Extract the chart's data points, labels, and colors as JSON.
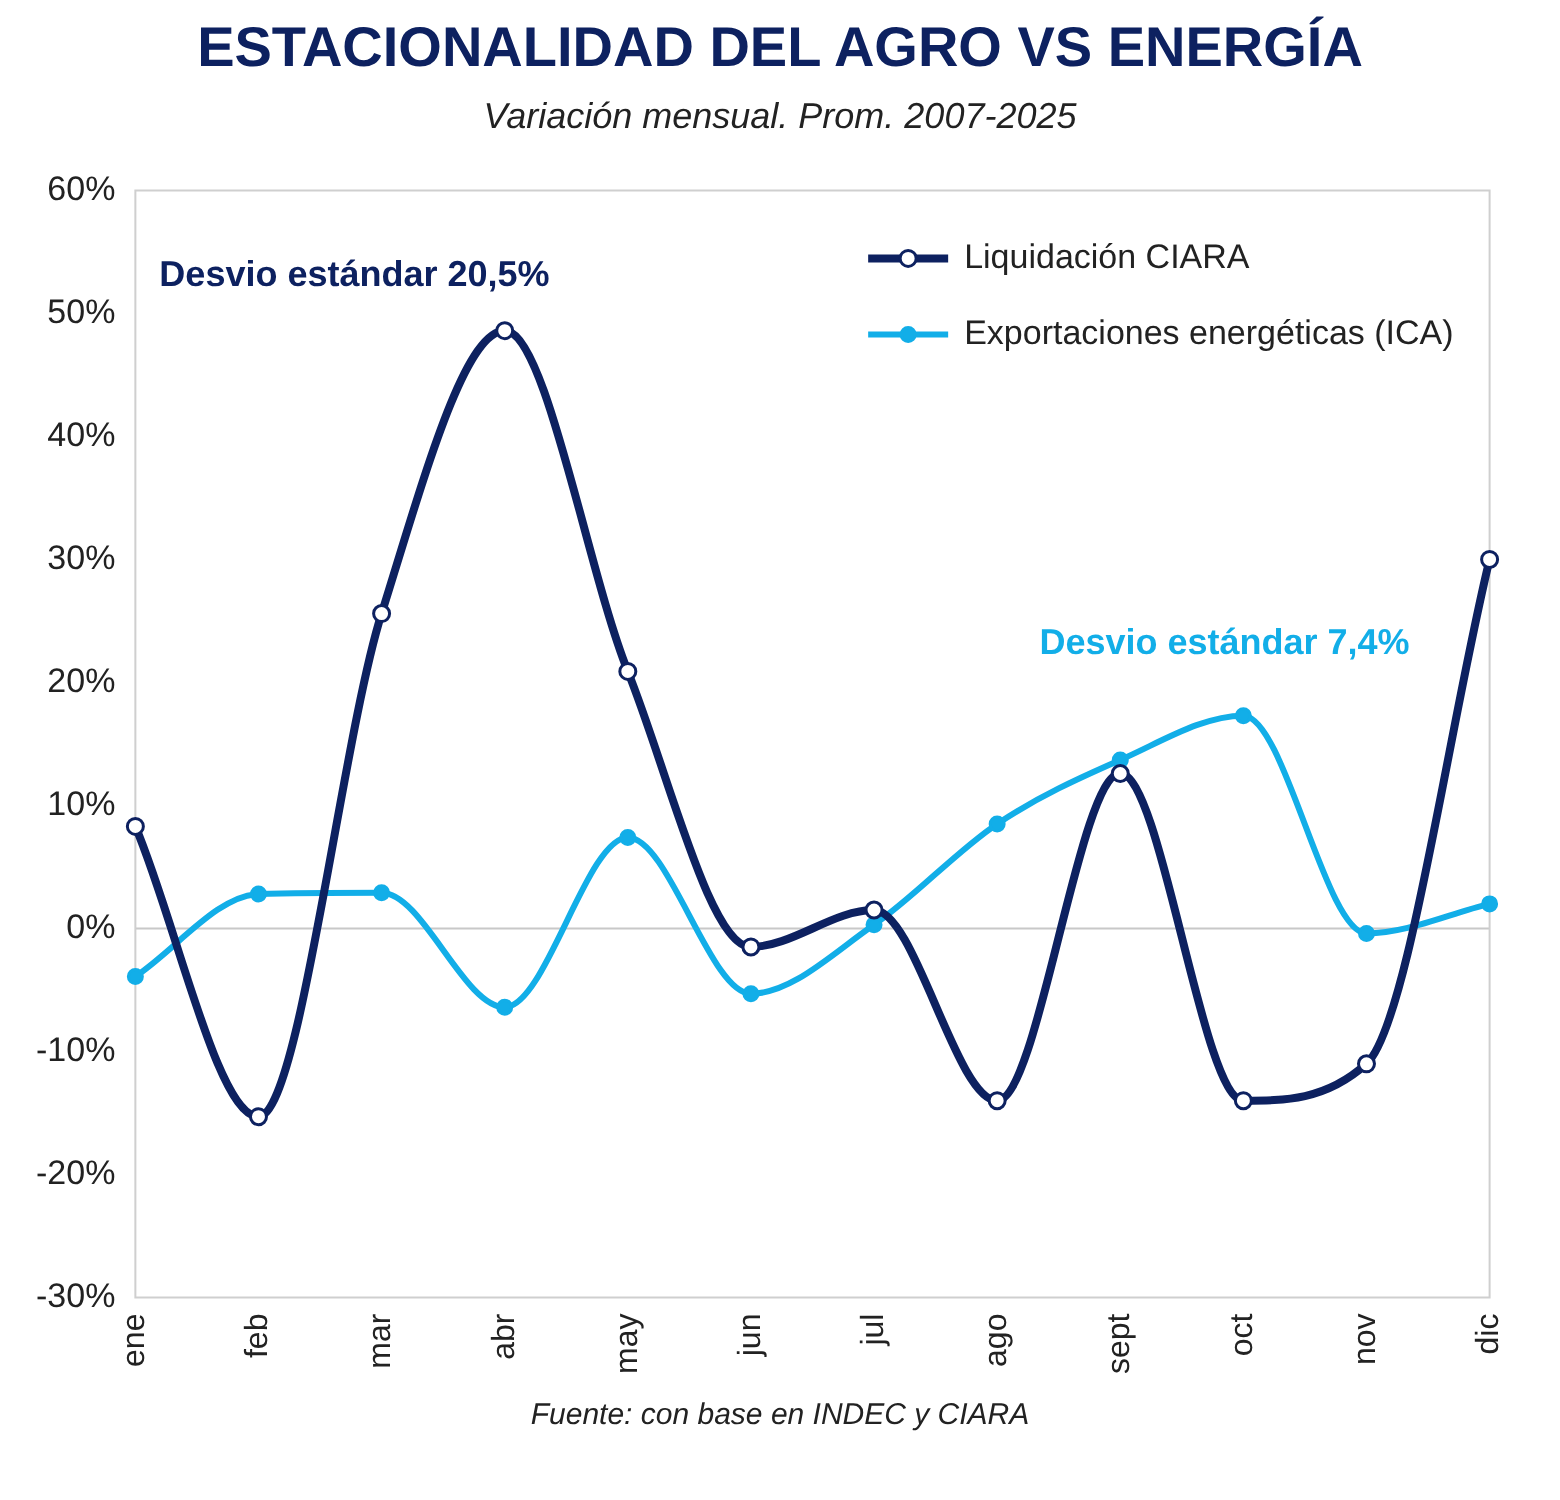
{
  "chart_data": {
    "type": "line",
    "title": "ESTACIONALIDAD DEL AGRO VS ENERGÍA",
    "subtitle": "Variación mensual. Prom. 2007-2025",
    "categories": [
      "ene",
      "feb",
      "mar",
      "abr",
      "may",
      "jun",
      "jul",
      "ago",
      "sept",
      "oct",
      "nov",
      "dic"
    ],
    "series": [
      {
        "name": "Liquidación CIARA",
        "color": "#0d2160",
        "values": [
          8.3,
          -15.3,
          25.6,
          48.6,
          20.9,
          -1.5,
          1.5,
          -14.0,
          12.6,
          -14.0,
          -11.0,
          30.0
        ]
      },
      {
        "name": "Exportaciones energéticas (ICA)",
        "color": "#12aee8",
        "values": [
          -3.9,
          2.8,
          2.9,
          -6.4,
          7.4,
          -5.3,
          0.3,
          8.5,
          13.7,
          17.3,
          -0.4,
          2.0
        ]
      }
    ],
    "ylim": [
      -30,
      60
    ],
    "yticks": [
      {
        "value": -30,
        "label": "-30%"
      },
      {
        "value": -20,
        "label": "-20%"
      },
      {
        "value": -10,
        "label": "-10%"
      },
      {
        "value": 0,
        "label": "0%"
      },
      {
        "value": 10,
        "label": "10%"
      },
      {
        "value": 20,
        "label": "20%"
      },
      {
        "value": 30,
        "label": "30%"
      },
      {
        "value": 40,
        "label": "40%"
      },
      {
        "value": 50,
        "label": "50%"
      },
      {
        "value": 60,
        "label": "60%"
      }
    ],
    "ref_lines": [
      {
        "axis": "y",
        "value": 0,
        "color": "#c8c8c8"
      }
    ],
    "annotations": [
      "Desvio estándar 20,5%",
      "Desvio estándar 7,4%",
      "Fuente: con base en INDEC y CIARA"
    ],
    "grid": false,
    "legend": "top right",
    "marker": "circle",
    "line_style": "solid"
  }
}
